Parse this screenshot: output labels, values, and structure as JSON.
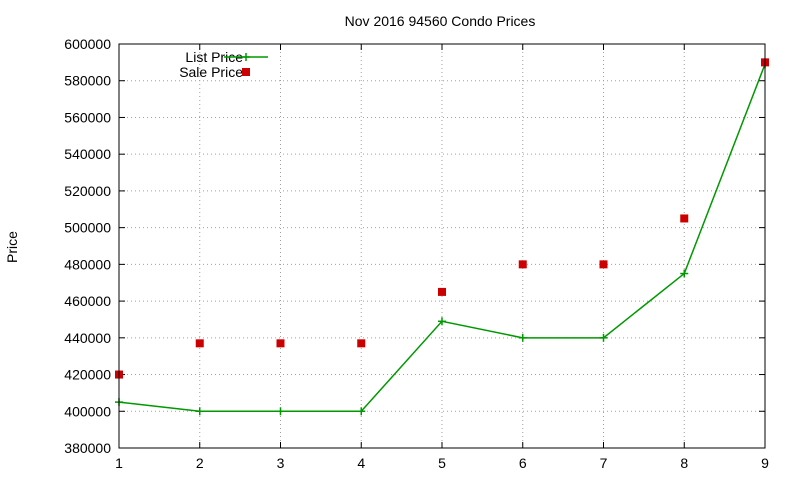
{
  "chart_data": {
    "type": "line",
    "title": "Nov 2016 94560 Condo Prices",
    "xlabel": "",
    "ylabel": "Price",
    "x": [
      1,
      2,
      3,
      4,
      5,
      6,
      7,
      8,
      9
    ],
    "xlim": [
      1,
      9
    ],
    "ylim": [
      380000,
      600000
    ],
    "x_ticks": [
      1,
      2,
      3,
      4,
      5,
      6,
      7,
      8,
      9
    ],
    "y_ticks": [
      380000,
      400000,
      420000,
      440000,
      460000,
      480000,
      500000,
      520000,
      540000,
      560000,
      580000,
      600000
    ],
    "grid": true,
    "legend_position": "top-left",
    "series": [
      {
        "name": "List Price",
        "style": "line-with-plus-markers",
        "color": "#009900",
        "values": [
          405000,
          400000,
          400000,
          400000,
          449000,
          440000,
          440000,
          475000,
          589000
        ]
      },
      {
        "name": "Sale Price",
        "style": "square-markers",
        "color": "#cc0000",
        "values": [
          420000,
          437000,
          437000,
          437000,
          465000,
          480000,
          480000,
          505000,
          590000
        ]
      }
    ]
  }
}
